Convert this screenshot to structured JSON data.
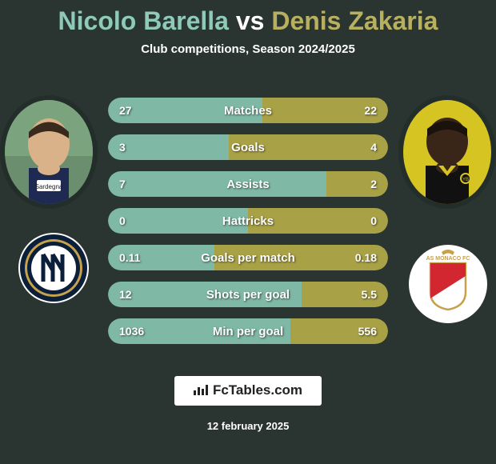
{
  "title": {
    "player1": "Nicolo Barella",
    "vs": "vs",
    "player2": "Denis Zakaria"
  },
  "subtitle": "Club competitions, Season 2024/2025",
  "colors": {
    "player1": "#7fb8a5",
    "player2": "#a9a145",
    "background": "#2a3532",
    "text": "#ffffff",
    "title_p1": "#8fc9b8",
    "title_p2": "#b8b05f"
  },
  "stats": [
    {
      "label": "Matches",
      "v1": "27",
      "v2": "22",
      "pct1": 55,
      "pct2": 45
    },
    {
      "label": "Goals",
      "v1": "3",
      "v2": "4",
      "pct1": 43,
      "pct2": 57
    },
    {
      "label": "Assists",
      "v1": "7",
      "v2": "2",
      "pct1": 78,
      "pct2": 22
    },
    {
      "label": "Hattricks",
      "v1": "0",
      "v2": "0",
      "pct1": 50,
      "pct2": 50
    },
    {
      "label": "Goals per match",
      "v1": "0.11",
      "v2": "0.18",
      "pct1": 38,
      "pct2": 62
    },
    {
      "label": "Shots per goal",
      "v1": "12",
      "v2": "5.5",
      "pct1": 69,
      "pct2": 31
    },
    {
      "label": "Min per goal",
      "v1": "1036",
      "v2": "556",
      "pct1": 65,
      "pct2": 35
    }
  ],
  "footer_brand": "FcTables.com",
  "date": "12 february 2025",
  "club_left": {
    "name": "Inter",
    "ring_color": "#0b1f3a",
    "gold": "#c7a24a"
  },
  "club_right": {
    "name": "Monaco",
    "bg": "#ffffff",
    "red": "#d22730",
    "gold": "#c8a04a"
  }
}
